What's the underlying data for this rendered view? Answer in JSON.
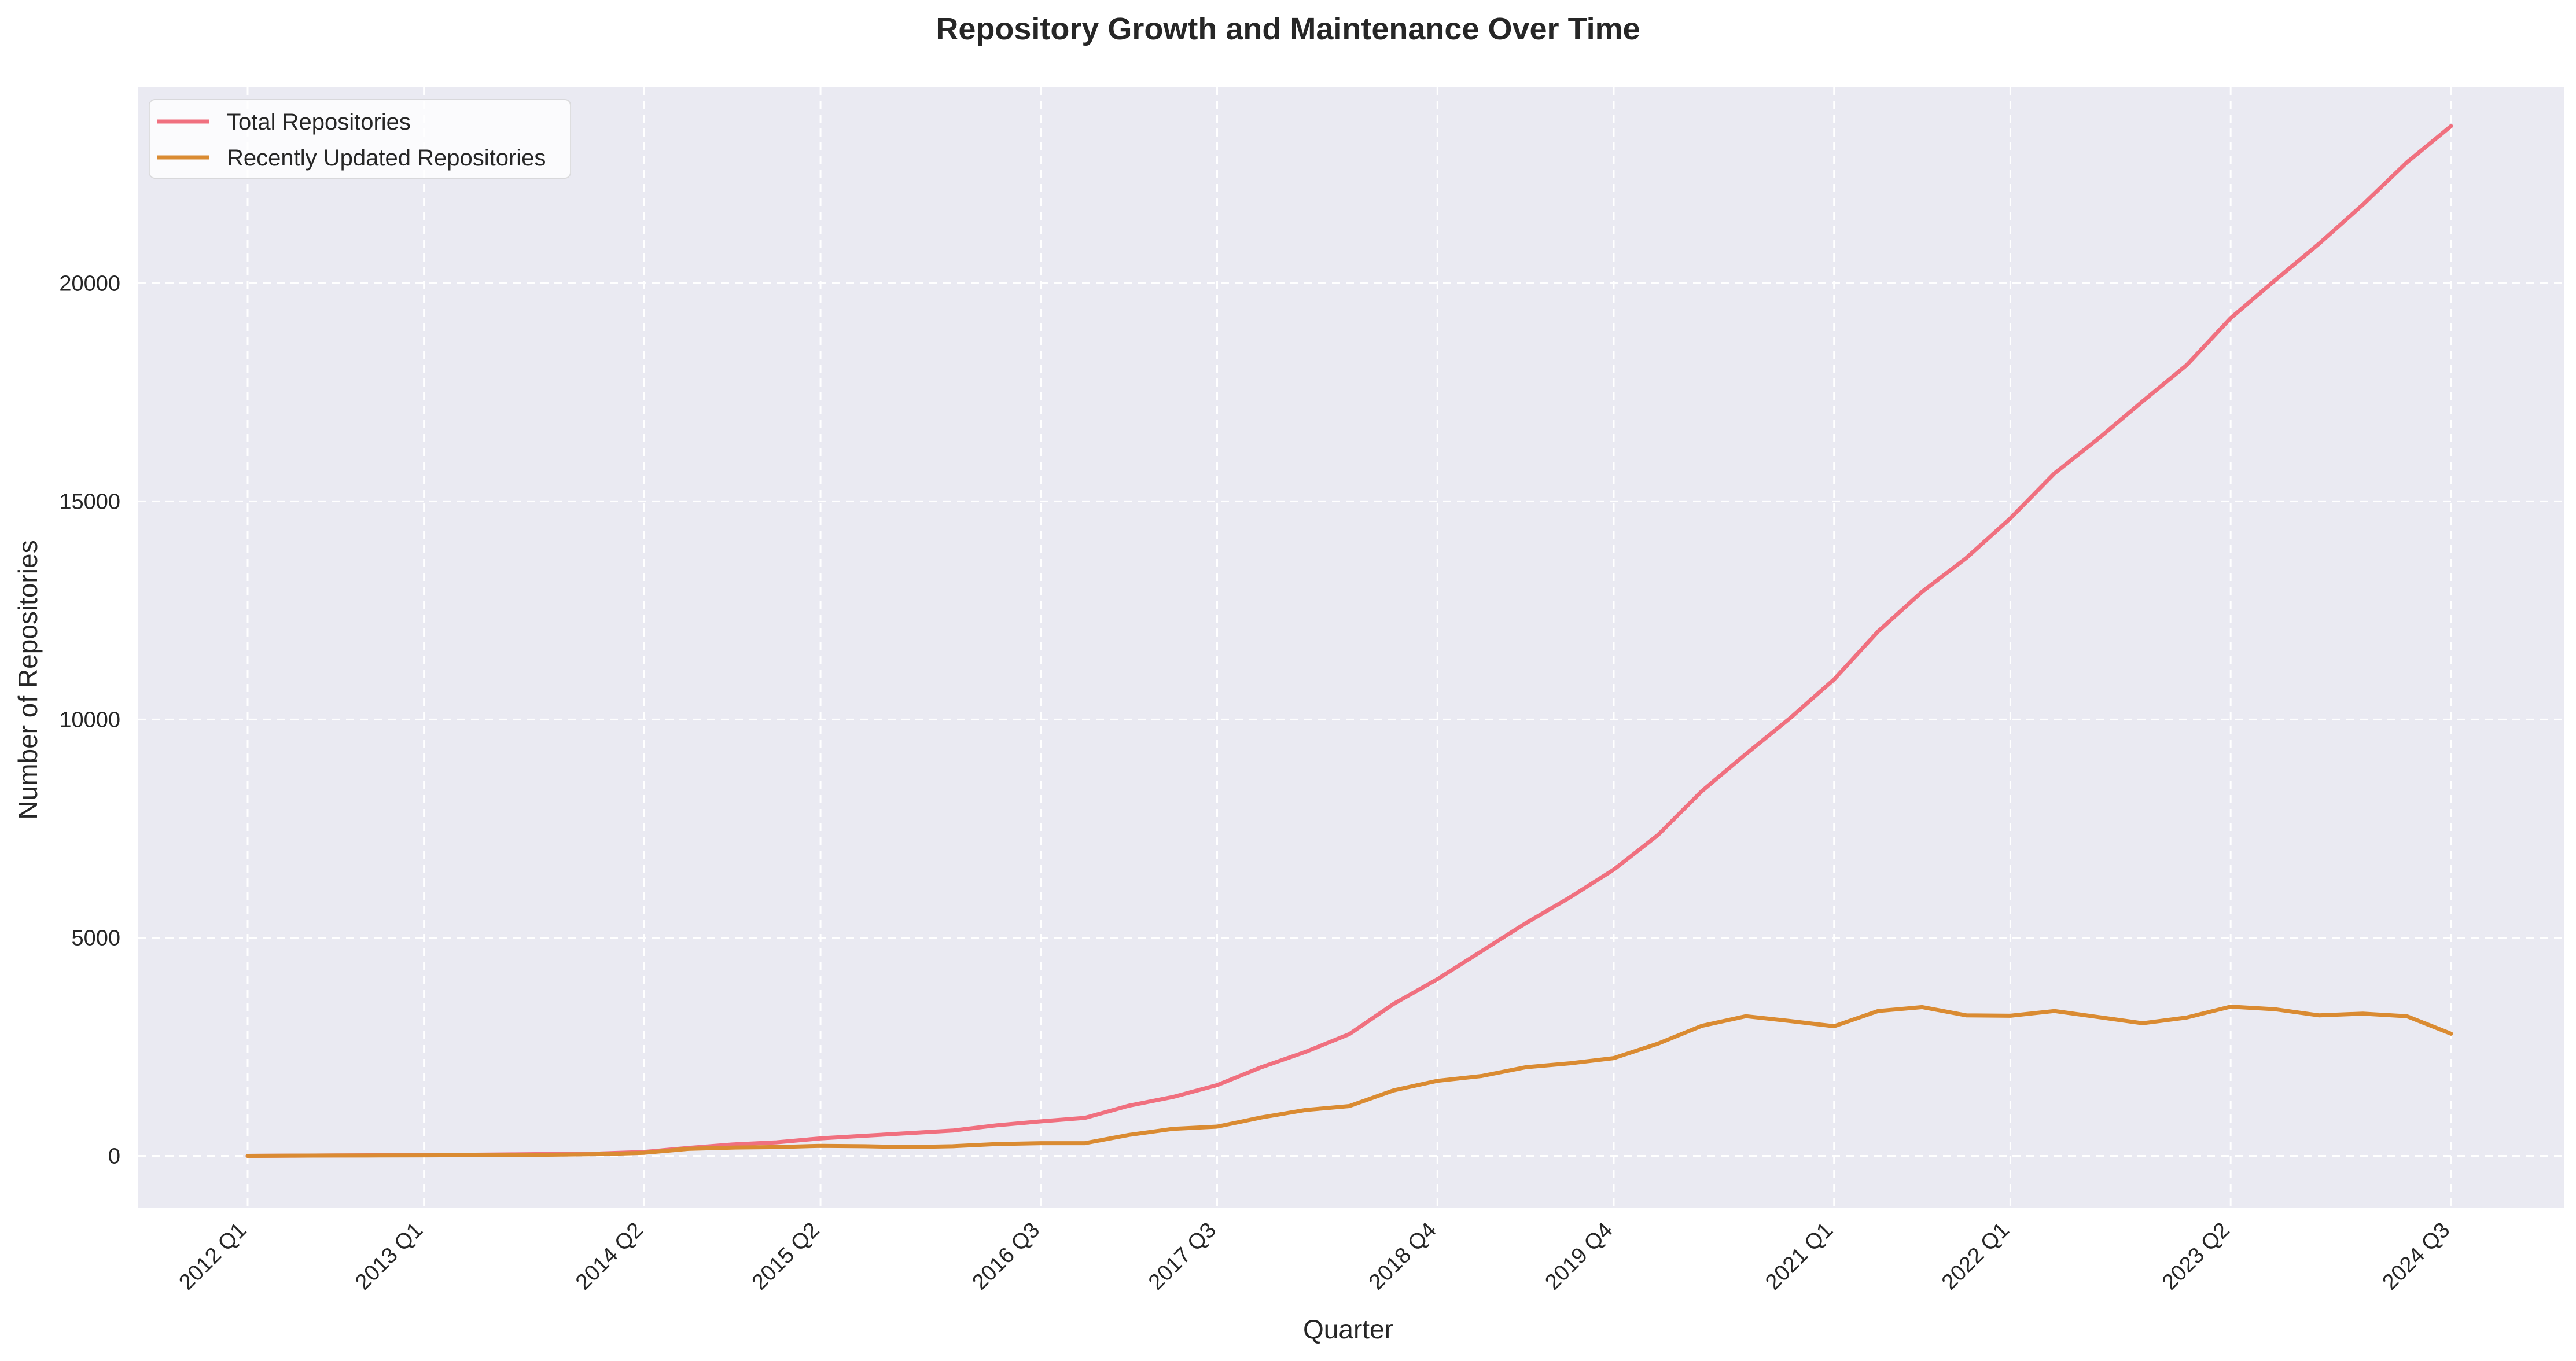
{
  "colors": {
    "plot_background": "#EAEAF2",
    "grid": "#FFFFFF",
    "text": "#262626"
  },
  "chart_data": {
    "type": "line",
    "title": "Repository Growth and Maintenance Over Time",
    "xlabel": "Quarter",
    "ylabel": "Number of Repositories",
    "ylim": [
      -1200,
      24500
    ],
    "yticks": [
      0,
      5000,
      10000,
      15000,
      20000
    ],
    "ytick_labels": [
      "0",
      "5000",
      "10000",
      "15000",
      "20000"
    ],
    "grid": true,
    "legend_position": "top-left",
    "x": [
      "2012 Q1",
      "2012 Q2",
      "2012 Q3",
      "2012 Q4",
      "2013 Q1",
      "2013 Q2",
      "2013 Q3",
      "2013 Q4",
      "2014 Q1",
      "2014 Q2",
      "2014 Q3",
      "2014 Q4",
      "2015 Q1",
      "2015 Q2",
      "2015 Q3",
      "2015 Q4",
      "2016 Q1",
      "2016 Q2",
      "2016 Q3",
      "2016 Q4",
      "2017 Q1",
      "2017 Q2",
      "2017 Q3",
      "2017 Q4",
      "2018 Q1",
      "2018 Q2",
      "2018 Q3",
      "2018 Q4",
      "2019 Q1",
      "2019 Q2",
      "2019 Q3",
      "2019 Q4",
      "2020 Q1",
      "2020 Q2",
      "2020 Q3",
      "2020 Q4",
      "2021 Q1",
      "2021 Q2",
      "2021 Q3",
      "2021 Q4",
      "2022 Q1",
      "2022 Q2",
      "2022 Q3",
      "2022 Q4",
      "2023 Q1",
      "2023 Q2",
      "2023 Q3",
      "2023 Q4",
      "2024 Q1",
      "2024 Q2",
      "2024 Q3"
    ],
    "xtick_labels": [
      "2012 Q1",
      "2013 Q1",
      "2014 Q2",
      "2015 Q2",
      "2016 Q3",
      "2017 Q3",
      "2018 Q4",
      "2019 Q4",
      "2021 Q1",
      "2022 Q1",
      "2023 Q2",
      "2024 Q3"
    ],
    "series": [
      {
        "name": "Total Repositories",
        "color": "#F0707F",
        "values": [
          0,
          5,
          10,
          15,
          20,
          25,
          35,
          45,
          55,
          90,
          180,
          260,
          310,
          400,
          460,
          520,
          580,
          700,
          790,
          870,
          1150,
          1350,
          1620,
          2030,
          2380,
          2790,
          3480,
          4050,
          4690,
          5330,
          5920,
          6560,
          7350,
          8360,
          9210,
          10030,
          10920,
          12020,
          12930,
          13700,
          14610,
          15640,
          16440,
          17290,
          18120,
          19200,
          20060,
          20900,
          21800,
          22770,
          23600
        ]
      },
      {
        "name": "Recently Updated Repositories",
        "color": "#DA8B32",
        "values": [
          0,
          5,
          8,
          10,
          12,
          15,
          20,
          28,
          40,
          70,
          160,
          190,
          200,
          230,
          220,
          200,
          220,
          270,
          290,
          290,
          480,
          620,
          670,
          880,
          1050,
          1140,
          1500,
          1720,
          1830,
          2030,
          2120,
          2240,
          2570,
          2980,
          3200,
          3090,
          2970,
          3320,
          3410,
          3220,
          3210,
          3320,
          3180,
          3040,
          3170,
          3420,
          3360,
          3220,
          3260,
          3200,
          2800
        ]
      }
    ]
  }
}
